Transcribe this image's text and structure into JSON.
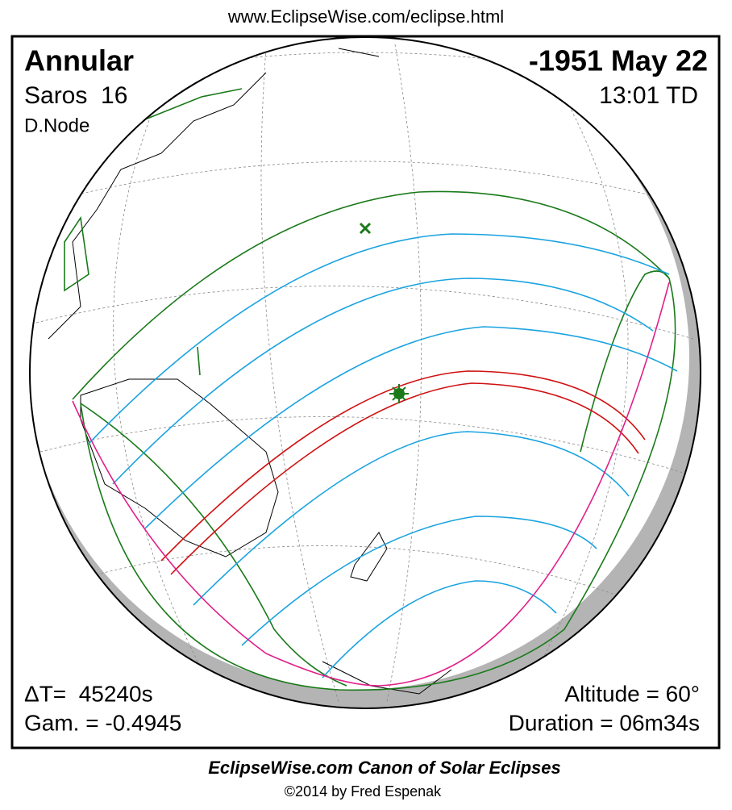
{
  "header": {
    "url": "www.EclipseWise.com/eclipse.html"
  },
  "panel": {
    "type": "Annular",
    "saros": "Saros  16",
    "node": "D.Node",
    "date": "-1951 May 22",
    "time": "13:01 TD",
    "delta_t": "ΔT=  45240s",
    "gamma": "Gam. = -0.4945",
    "altitude": "Altitude = 60°",
    "duration": "Duration = 06m34s"
  },
  "footer": {
    "title": "EclipseWise.com Canon of Solar Eclipses",
    "credit": "©2014 by Fred Espenak"
  }
}
